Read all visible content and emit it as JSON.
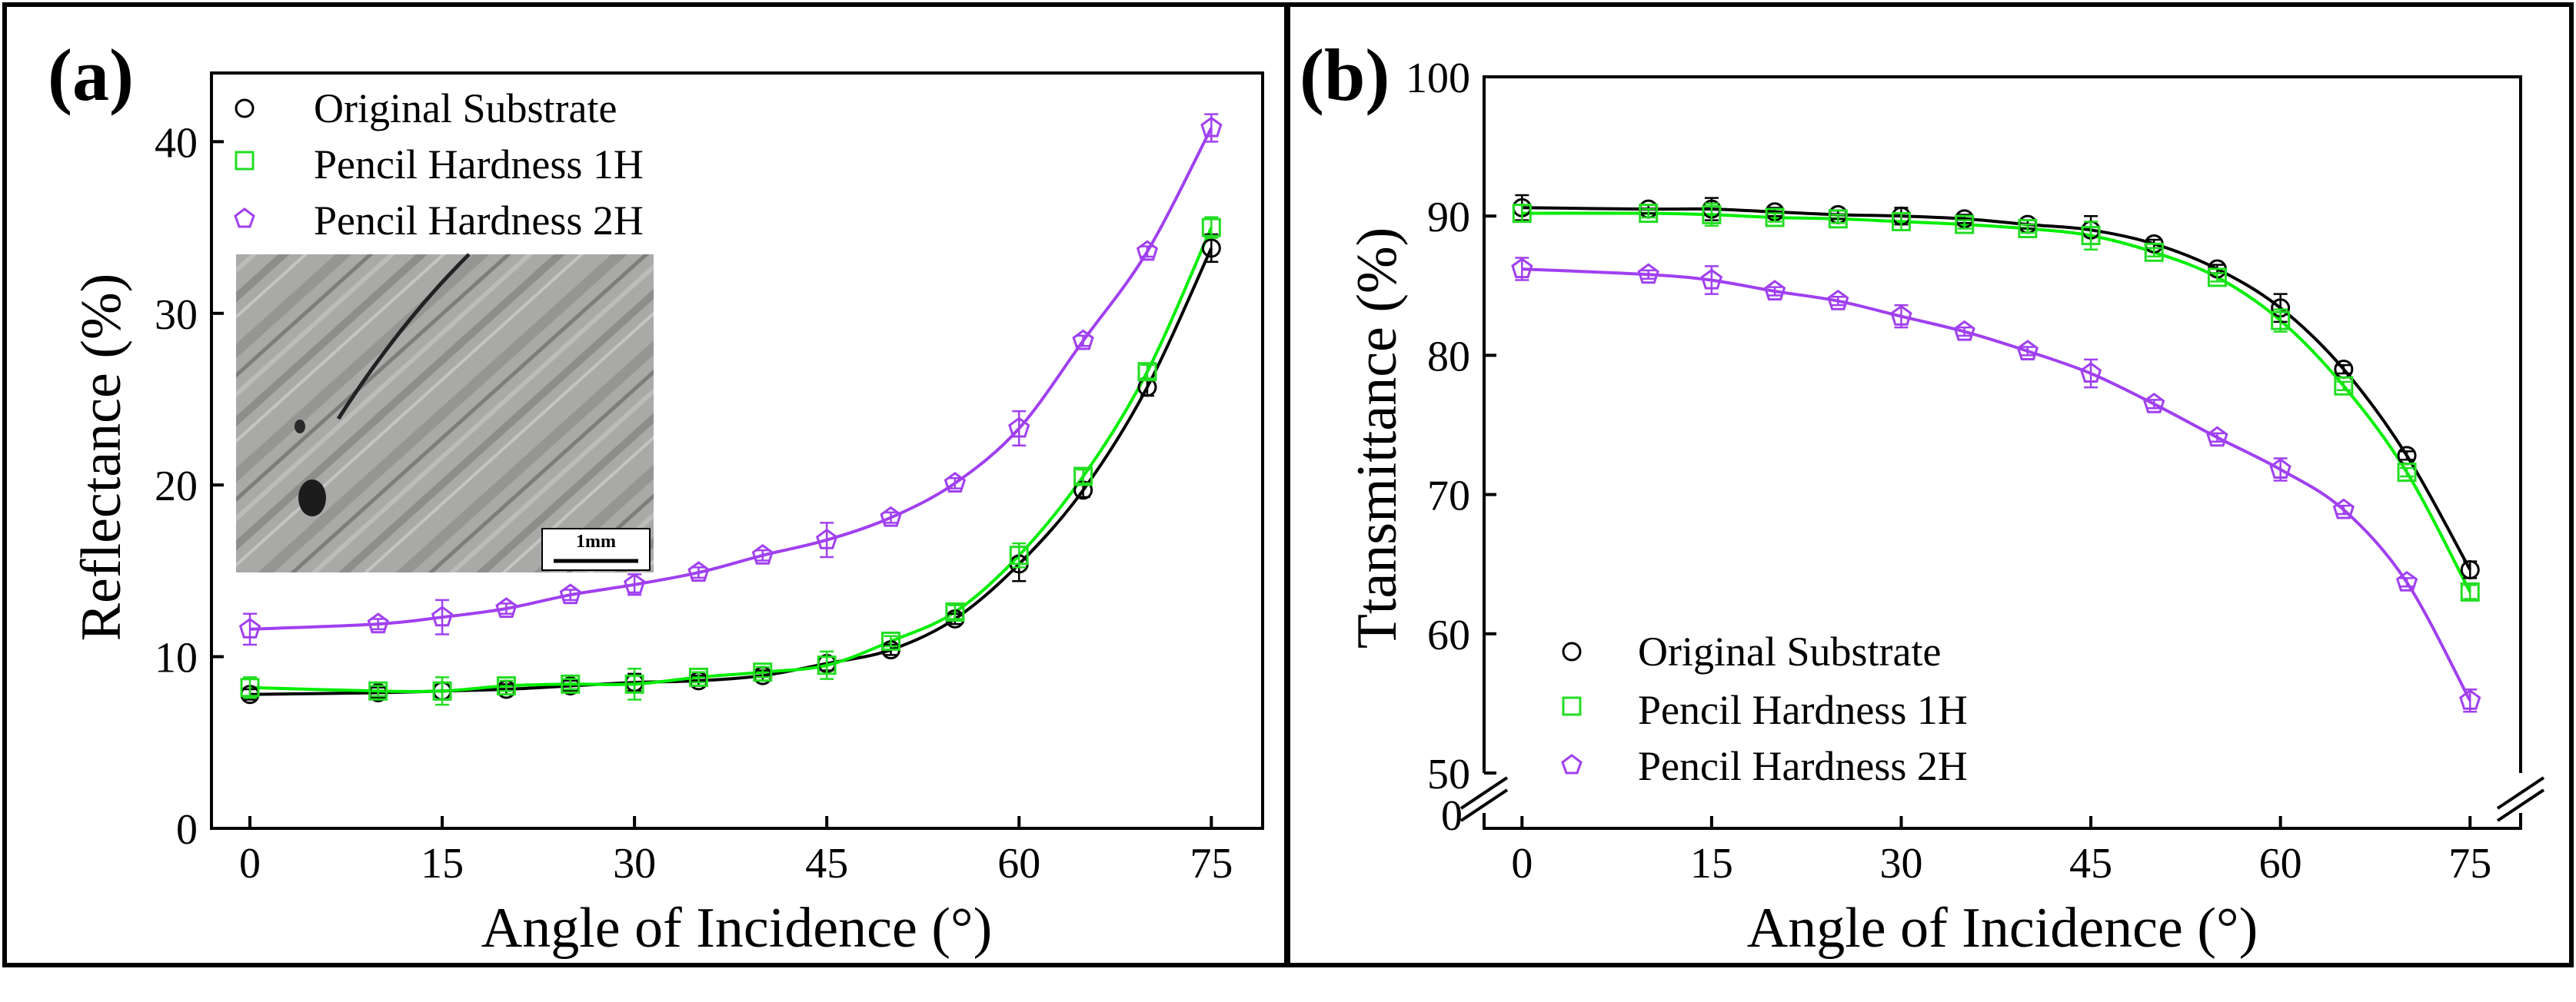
{
  "colors": {
    "original": "#000000",
    "hardness_1h": "#22dd22",
    "hardness_2h": "#a040f0",
    "fit_original": "#000000",
    "fit_1h": "#00ee00",
    "fit_2h": "#a040f0"
  },
  "chart_data": [
    {
      "panel": "(a)",
      "type": "scatter",
      "xlabel": "Angle of Incidence (°)",
      "ylabel": "Reflectance (%)",
      "xlim": [
        -3,
        79
      ],
      "ylim": [
        0,
        44
      ],
      "xticks": [
        0,
        15,
        30,
        45,
        60,
        75
      ],
      "yticks": [
        0,
        10,
        20,
        30,
        40
      ],
      "inset": {
        "scale_label": "1mm",
        "description_shape": "micrograph"
      },
      "legend_position": "top-left",
      "series": [
        {
          "name": "Original Substrate",
          "marker": "circle",
          "color_key": "original",
          "x": [
            0,
            10,
            15,
            20,
            25,
            30,
            35,
            40,
            45,
            50,
            55,
            60,
            65,
            70,
            75
          ],
          "y": [
            7.8,
            7.9,
            8.0,
            8.1,
            8.3,
            8.5,
            8.6,
            8.9,
            9.6,
            10.4,
            12.2,
            15.4,
            19.7,
            25.7,
            33.8
          ],
          "err": [
            0.3,
            0.3,
            0.5,
            0.3,
            0.3,
            0.5,
            0.3,
            0.3,
            0.4,
            0.3,
            0.3,
            1.0,
            0.4,
            0.5,
            0.8
          ]
        },
        {
          "name": "Pencil Hardness 1H",
          "marker": "square",
          "color_key": "hardness_1h",
          "x": [
            0,
            10,
            15,
            20,
            25,
            30,
            35,
            40,
            45,
            50,
            55,
            60,
            65,
            70,
            75
          ],
          "y": [
            8.2,
            8.0,
            8.0,
            8.3,
            8.4,
            8.4,
            8.8,
            9.1,
            9.5,
            10.9,
            12.6,
            15.9,
            20.5,
            26.6,
            35.0
          ],
          "err": [
            0.6,
            0.3,
            0.8,
            0.3,
            0.3,
            0.9,
            0.3,
            0.3,
            0.8,
            0.3,
            0.4,
            0.7,
            0.4,
            0.4,
            0.6
          ]
        },
        {
          "name": "Pencil Hardness 2H",
          "marker": "pentagon",
          "color_key": "hardness_2h",
          "x": [
            0,
            10,
            15,
            20,
            25,
            30,
            35,
            40,
            45,
            50,
            55,
            60,
            65,
            70,
            75
          ],
          "y": [
            11.6,
            11.9,
            12.3,
            12.8,
            13.6,
            14.2,
            14.9,
            15.9,
            16.8,
            18.1,
            20.1,
            23.3,
            28.4,
            33.6,
            40.8
          ],
          "err": [
            0.9,
            0.3,
            1.0,
            0.3,
            0.3,
            0.6,
            0.3,
            0.3,
            1.0,
            0.3,
            0.3,
            1.0,
            0.3,
            0.3,
            0.8
          ]
        }
      ]
    },
    {
      "panel": "(b)",
      "type": "scatter",
      "xlabel": "Angle of Incidence (°)",
      "ylabel": "Ttansmittance (%)",
      "xlim": [
        -3,
        79
      ],
      "ylim": [
        50,
        100
      ],
      "xticks": [
        0,
        15,
        30,
        45,
        60,
        75
      ],
      "yticks": [
        50,
        60,
        70,
        80,
        90,
        100
      ],
      "axis_break": {
        "below_label": "0",
        "above_value": 50
      },
      "legend_position": "bottom-left",
      "series": [
        {
          "name": "Original Substrate",
          "marker": "circle",
          "color_key": "original",
          "x": [
            0,
            10,
            15,
            20,
            25,
            30,
            35,
            40,
            45,
            50,
            55,
            60,
            65,
            70,
            75
          ],
          "y": [
            90.6,
            90.5,
            90.5,
            90.3,
            90.1,
            90.0,
            89.8,
            89.4,
            89.0,
            88.0,
            86.2,
            83.4,
            79.0,
            72.8,
            64.6
          ],
          "err": [
            0.9,
            0.3,
            0.8,
            0.3,
            0.3,
            0.6,
            0.3,
            0.3,
            1.0,
            0.3,
            0.3,
            1.0,
            0.3,
            0.3,
            0.6
          ]
        },
        {
          "name": "Pencil Hardness 1H",
          "marker": "square",
          "color_key": "hardness_1h",
          "x": [
            0,
            10,
            15,
            20,
            25,
            30,
            35,
            40,
            45,
            50,
            55,
            60,
            65,
            70,
            75
          ],
          "y": [
            90.2,
            90.2,
            90.1,
            89.9,
            89.8,
            89.6,
            89.4,
            89.1,
            88.6,
            87.4,
            85.6,
            82.5,
            77.8,
            71.6,
            63.0
          ],
          "err": [
            0.6,
            0.3,
            0.8,
            0.3,
            0.3,
            0.6,
            0.3,
            0.3,
            1.0,
            0.3,
            0.3,
            0.8,
            0.3,
            0.3,
            0.5
          ]
        },
        {
          "name": "Pencil Hardness 2H",
          "marker": "pentagon",
          "color_key": "hardness_2h",
          "x": [
            0,
            10,
            15,
            20,
            25,
            30,
            35,
            40,
            45,
            50,
            55,
            60,
            65,
            70,
            75
          ],
          "y": [
            86.2,
            85.8,
            85.4,
            84.6,
            83.9,
            82.8,
            81.7,
            80.3,
            78.7,
            76.5,
            74.1,
            71.8,
            68.9,
            63.7,
            55.2
          ],
          "err": [
            0.8,
            0.3,
            1.0,
            0.3,
            0.3,
            0.8,
            0.3,
            0.3,
            1.0,
            0.3,
            0.3,
            0.8,
            0.3,
            0.3,
            0.8
          ]
        }
      ]
    }
  ]
}
